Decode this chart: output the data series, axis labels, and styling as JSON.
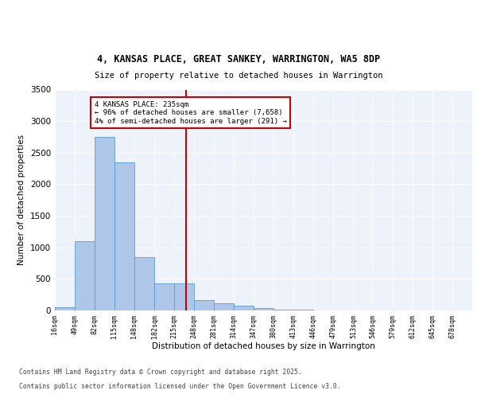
{
  "title_line1": "4, KANSAS PLACE, GREAT SANKEY, WARRINGTON, WA5 8DP",
  "title_line2": "Size of property relative to detached houses in Warrington",
  "xlabel": "Distribution of detached houses by size in Warrington",
  "ylabel": "Number of detached properties",
  "bar_color": "#aec6e8",
  "bar_edge_color": "#5b9bd5",
  "background_color": "#eef3fb",
  "grid_color": "#ffffff",
  "annotation_line_color": "#cc0000",
  "annotation_box_color": "#cc0000",
  "annotation_text": "4 KANSAS PLACE: 235sqm\n← 96% of detached houses are smaller (7,658)\n4% of semi-detached houses are larger (291) →",
  "property_size": 235,
  "vline_x": 235,
  "footnote1": "Contains HM Land Registry data © Crown copyright and database right 2025.",
  "footnote2": "Contains public sector information licensed under the Open Government Licence v3.0.",
  "bin_edges": [
    16,
    49,
    82,
    115,
    148,
    182,
    215,
    248,
    281,
    314,
    347,
    380,
    413,
    446,
    479,
    513,
    546,
    579,
    612,
    645,
    678
  ],
  "bin_labels": [
    "16sqm",
    "49sqm",
    "82sqm",
    "115sqm",
    "148sqm",
    "182sqm",
    "215sqm",
    "248sqm",
    "281sqm",
    "314sqm",
    "347sqm",
    "380sqm",
    "413sqm",
    "446sqm",
    "479sqm",
    "513sqm",
    "546sqm",
    "579sqm",
    "612sqm",
    "645sqm",
    "678sqm"
  ],
  "bar_heights": [
    50,
    1100,
    2750,
    2350,
    850,
    430,
    430,
    170,
    115,
    80,
    40,
    15,
    10,
    5,
    2,
    1,
    0,
    0,
    0,
    0
  ],
  "ylim": [
    0,
    3500
  ],
  "yticks": [
    0,
    500,
    1000,
    1500,
    2000,
    2500,
    3000,
    3500
  ]
}
